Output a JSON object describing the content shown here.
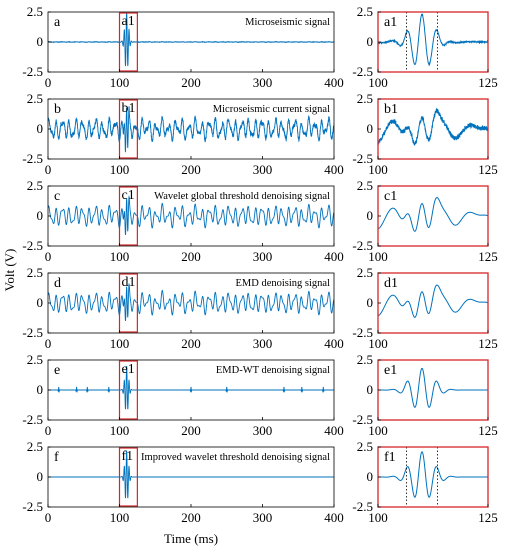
{
  "figure": {
    "xlabel": "Time (ms)",
    "ylabel": "Volt (V)",
    "colors": {
      "signal": "#0072BD",
      "highlight": "#d62728",
      "guide": "#000000"
    }
  },
  "chart_data": [
    {
      "type": "line",
      "label": "a",
      "title": "Microseismic signal",
      "view": "full",
      "xlim": [
        0,
        400
      ],
      "ylim": [
        -2.5,
        2.5
      ],
      "xticks": [
        0,
        100,
        200,
        300,
        400
      ],
      "yticks": [
        -2.5,
        0,
        2.5
      ],
      "highlight_label": "a1",
      "highlight_range": [
        100,
        125
      ],
      "noise_amplitude": 0.02,
      "burst": {
        "center": 110,
        "amplitude": 2.5,
        "width": 2.5
      }
    },
    {
      "type": "line",
      "label": "b",
      "title": "Microseismic current signal",
      "view": "full",
      "xlim": [
        0,
        400
      ],
      "ylim": [
        -2.5,
        2.5
      ],
      "xticks": [
        0,
        100,
        200,
        300,
        400
      ],
      "yticks": [
        -2.5,
        0,
        2.5
      ],
      "highlight_label": "b1",
      "highlight_range": [
        100,
        125
      ],
      "noise_amplitude": 1.0,
      "burst": {
        "center": 110,
        "amplitude": 2.0,
        "width": 2.5
      }
    },
    {
      "type": "line",
      "label": "c",
      "title": "Wavelet global threshold denoising signal",
      "view": "full",
      "xlim": [
        0,
        400
      ],
      "ylim": [
        -2.5,
        2.5
      ],
      "xticks": [
        0,
        100,
        200,
        300,
        400
      ],
      "yticks": [
        -2.5,
        0,
        2.5
      ],
      "highlight_label": "c1",
      "highlight_range": [
        100,
        125
      ],
      "noise_amplitude": 1.0,
      "burst": {
        "center": 110,
        "amplitude": 1.7,
        "width": 2.5
      }
    },
    {
      "type": "line",
      "label": "d",
      "title": "EMD denoising signal",
      "view": "full",
      "xlim": [
        0,
        400
      ],
      "ylim": [
        -2.5,
        2.5
      ],
      "xticks": [
        0,
        100,
        200,
        300,
        400
      ],
      "yticks": [
        -2.5,
        0,
        2.5
      ],
      "highlight_label": "d1",
      "highlight_range": [
        100,
        125
      ],
      "noise_amplitude": 1.0,
      "burst": {
        "center": 110,
        "amplitude": 1.6,
        "width": 2.5
      }
    },
    {
      "type": "line",
      "label": "e",
      "title": "EMD-WT denoising signal",
      "view": "full",
      "xlim": [
        0,
        400
      ],
      "ylim": [
        -2.5,
        2.5
      ],
      "xticks": [
        0,
        100,
        200,
        300,
        400
      ],
      "yticks": [
        -2.5,
        0,
        2.5
      ],
      "highlight_label": "e1",
      "highlight_range": [
        100,
        125
      ],
      "noise_amplitude": 0.0,
      "spikes": [
        15,
        40,
        55,
        85,
        200,
        250,
        330,
        355,
        385
      ],
      "burst": {
        "center": 110,
        "amplitude": 2.0,
        "width": 2.5
      }
    },
    {
      "type": "line",
      "label": "f",
      "title": "Improved wavelet threshold denoising signal",
      "view": "full",
      "xlim": [
        0,
        400
      ],
      "ylim": [
        -2.5,
        2.5
      ],
      "xticks": [
        0,
        100,
        200,
        300,
        400
      ],
      "yticks": [
        -2.5,
        0,
        2.5
      ],
      "highlight_label": "f1",
      "highlight_range": [
        100,
        125
      ],
      "noise_amplitude": 0.0,
      "burst": {
        "center": 110,
        "amplitude": 2.2,
        "width": 2.5
      }
    },
    {
      "type": "line",
      "label": "a1",
      "view": "zoom",
      "xlim": [
        100,
        125
      ],
      "ylim": [
        -2.5,
        2.5
      ],
      "xticks": [
        100,
        125
      ],
      "yticks": [
        -2.5,
        0,
        2.5
      ],
      "guides": [
        106.5,
        113.5
      ],
      "noise_amplitude": 0.08,
      "burst": {
        "center": 110,
        "amplitude": 2.3,
        "width": 2.5
      }
    },
    {
      "type": "line",
      "label": "b1",
      "view": "zoom",
      "xlim": [
        100,
        125
      ],
      "ylim": [
        -2.5,
        2.5
      ],
      "xticks": [
        100,
        125
      ],
      "yticks": [
        -2.5,
        0,
        2.5
      ],
      "noise_amplitude": 1.1,
      "burst": {
        "center": 110,
        "amplitude": 1.2,
        "width": 2.5
      }
    },
    {
      "type": "line",
      "label": "c1",
      "view": "zoom",
      "xlim": [
        100,
        125
      ],
      "ylim": [
        -2.5,
        2.5
      ],
      "xticks": [
        100,
        125
      ],
      "yticks": [
        -2.5,
        0,
        2.5
      ],
      "noise_amplitude": 1.1,
      "burst": {
        "center": 110,
        "amplitude": 1.3,
        "width": 2.5
      }
    },
    {
      "type": "line",
      "label": "d1",
      "view": "zoom",
      "xlim": [
        100,
        125
      ],
      "ylim": [
        -2.5,
        2.5
      ],
      "xticks": [
        100,
        125
      ],
      "yticks": [
        -2.5,
        0,
        2.5
      ],
      "noise_amplitude": 1.1,
      "burst": {
        "center": 110,
        "amplitude": 1.2,
        "width": 2.5
      }
    },
    {
      "type": "line",
      "label": "e1",
      "view": "zoom",
      "xlim": [
        100,
        125
      ],
      "ylim": [
        -2.5,
        2.5
      ],
      "xticks": [
        100,
        125
      ],
      "yticks": [
        -2.5,
        0,
        2.5
      ],
      "noise_amplitude": 0.0,
      "burst": {
        "center": 110,
        "amplitude": 1.8,
        "width": 2.5
      }
    },
    {
      "type": "line",
      "label": "f1",
      "view": "zoom",
      "xlim": [
        100,
        125
      ],
      "ylim": [
        -2.5,
        2.5
      ],
      "xticks": [
        100,
        125
      ],
      "yticks": [
        -2.5,
        0,
        2.5
      ],
      "guides": [
        106.5,
        113.5
      ],
      "noise_amplitude": 0.0,
      "burst": {
        "center": 110,
        "amplitude": 2.1,
        "width": 2.5
      }
    }
  ]
}
